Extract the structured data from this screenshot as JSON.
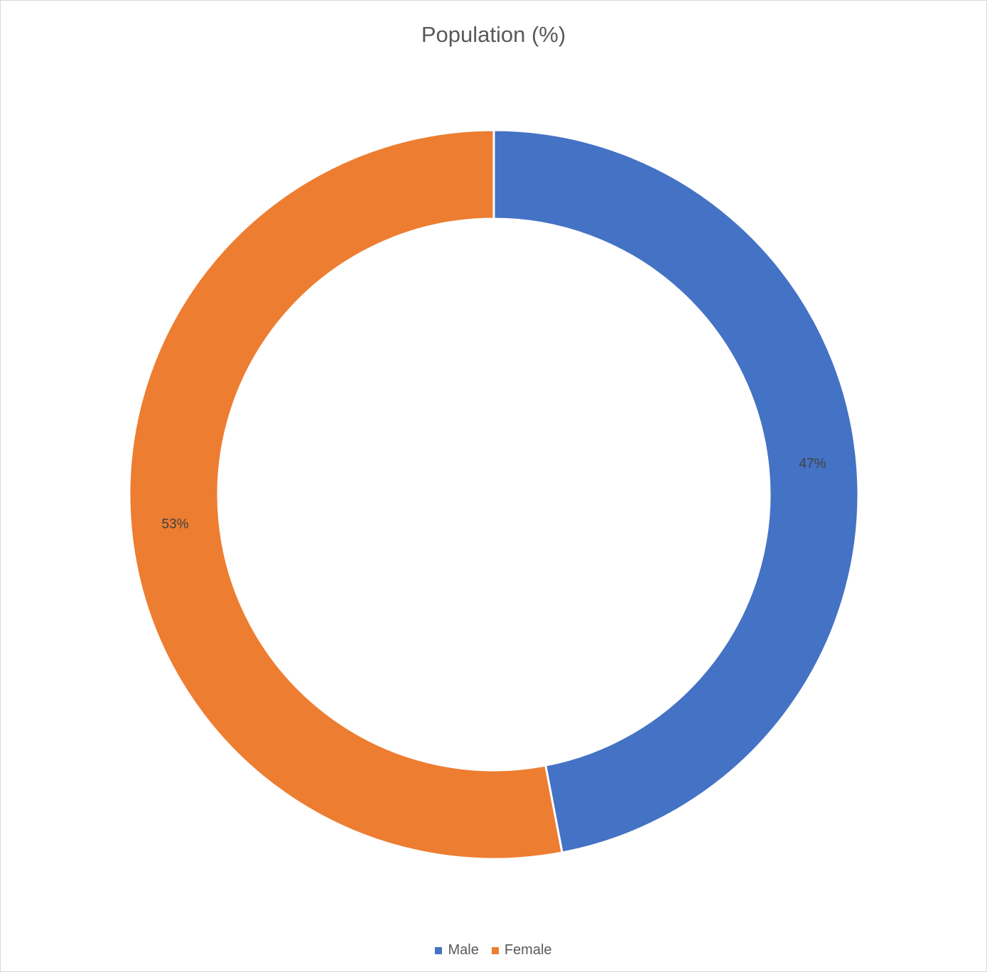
{
  "chart_data": {
    "type": "pie",
    "variant": "doughnut",
    "title": "Population (%)",
    "categories": [
      "Male",
      "Female"
    ],
    "values": [
      47,
      53
    ],
    "labels": [
      "47%",
      "53%"
    ],
    "colors": [
      "#4472c4",
      "#ed7d31"
    ],
    "legend_position": "bottom"
  }
}
